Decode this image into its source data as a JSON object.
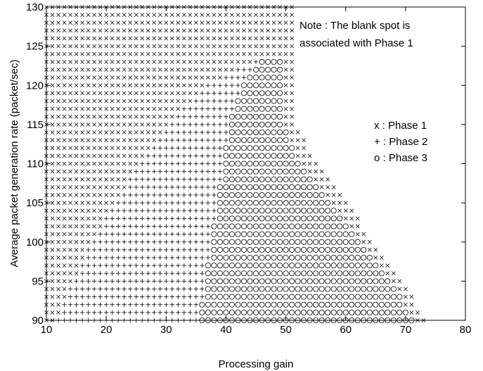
{
  "chart_data": {
    "type": "scatter",
    "xlabel": "Processing gain",
    "ylabel": "Average packet generation rate (packet/sec)",
    "xlim": [
      10,
      80
    ],
    "ylim": [
      90,
      130
    ],
    "xticks": [
      10,
      20,
      30,
      40,
      50,
      60,
      70,
      80
    ],
    "yticks": [
      90,
      95,
      100,
      105,
      110,
      115,
      120,
      125,
      130
    ],
    "grid": false,
    "legend_position": "right",
    "note": [
      "Note : The blank spot is",
      "associated with Phase 1"
    ],
    "legend": [
      {
        "symbol": "x",
        "label": "x : Phase 1"
      },
      {
        "symbol": "+",
        "label": "+ : Phase 2"
      },
      {
        "symbol": "o",
        "label": "o : Phase 3"
      }
    ],
    "series": [
      {
        "name": "Phase 1",
        "marker": "x"
      },
      {
        "name": "Phase 2",
        "marker": "+"
      },
      {
        "name": "Phase 3",
        "marker": "o"
      }
    ],
    "grid_sampling": {
      "x_step": 1,
      "y_step": 1
    },
    "regions": [
      {
        "y": 90,
        "phase1_end": 11,
        "phase2_end": 35,
        "phase3_end": 71,
        "max_x": 73
      },
      {
        "y": 95,
        "phase1_end": 14,
        "phase2_end": 36,
        "phase3_end": 67,
        "max_x": 69
      },
      {
        "y": 100,
        "phase1_end": 17,
        "phase2_end": 37,
        "phase3_end": 62,
        "max_x": 64
      },
      {
        "y": 105,
        "phase1_end": 21,
        "phase2_end": 38,
        "phase3_end": 57,
        "max_x": 60
      },
      {
        "y": 110,
        "phase1_end": 25,
        "phase2_end": 39,
        "phase3_end": 52,
        "max_x": 55
      },
      {
        "y": 115,
        "phase1_end": 30,
        "phase2_end": 40,
        "phase3_end": 49,
        "max_x": 51
      },
      {
        "y": 120,
        "phase1_end": 36,
        "phase2_end": 42,
        "phase3_end": 49,
        "max_x": 51
      },
      {
        "y": 123,
        "phase1_end": 44,
        "phase2_end": 45,
        "phase3_end": 49,
        "max_x": 51
      },
      {
        "y": 124,
        "phase1_end": 51,
        "phase2_end": 51,
        "phase3_end": 51,
        "max_x": 51
      },
      {
        "y": 130,
        "phase1_end": 51,
        "phase2_end": 51,
        "phase3_end": 51,
        "max_x": 51
      }
    ]
  }
}
